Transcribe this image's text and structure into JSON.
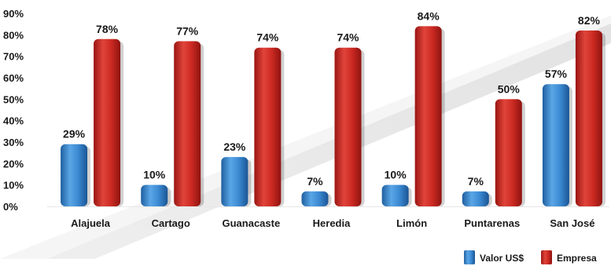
{
  "chart_data": {
    "type": "bar",
    "categories": [
      "Alajuela",
      "Cartago",
      "Guanacaste",
      "Heredia",
      "Limón",
      "Puntarenas",
      "San José"
    ],
    "series": [
      {
        "name": "Valor US$",
        "values": [
          29,
          10,
          23,
          7,
          10,
          7,
          57
        ],
        "labels": [
          "29%",
          "10%",
          "23%",
          "7%",
          "10%",
          "7%",
          "57%"
        ]
      },
      {
        "name": "Empresa",
        "values": [
          78,
          77,
          74,
          74,
          84,
          50,
          82
        ],
        "labels": [
          "78%",
          "77%",
          "74%",
          "74%",
          "84%",
          "50%",
          "82%"
        ]
      }
    ],
    "y_ticks": [
      "0%",
      "10%",
      "20%",
      "30%",
      "40%",
      "50%",
      "60%",
      "70%",
      "80%",
      "90%"
    ],
    "ylim": [
      0,
      90
    ],
    "unit": "%",
    "grid": false,
    "legend_position": "bottom-right",
    "colors": {
      "Valor US$": "#2f7fc8",
      "Empresa": "#c8201c"
    }
  }
}
